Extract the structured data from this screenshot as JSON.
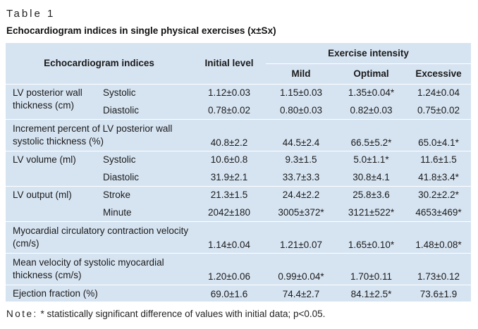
{
  "table_label": "Table 1",
  "title": "Echocardiogram indices in single physical exercises (x±Sx)",
  "header": {
    "indices": "Echocardiogram indices",
    "initial": "Initial level",
    "intensity": "Exercise intensity",
    "mild": "Mild",
    "optimal": "Optimal",
    "excessive": "Excessive"
  },
  "groups": [
    {
      "label": "LV posterior wall thickness (cm)",
      "rows": [
        {
          "sub": "Systolic",
          "initial": "1.12±0.03",
          "mild": "1.15±0.03",
          "optimal": "1.35±0.04*",
          "excessive": "1.24±0.04"
        },
        {
          "sub": "Diastolic",
          "initial": "0.78±0.02",
          "mild": "0.80±0.03",
          "optimal": "0.82±0.03",
          "excessive": "0.75±0.02"
        }
      ]
    },
    {
      "label": "Increment percent of LV posterior wall systolic thickness (%)",
      "rows": [
        {
          "sub": "",
          "initial": "40.8±2.2",
          "mild": "44.5±2.4",
          "optimal": "66.5±5.2*",
          "excessive": "65.0±4.1*"
        }
      ]
    },
    {
      "label": "LV volume (ml)",
      "rows": [
        {
          "sub": "Systolic",
          "initial": "10.6±0.8",
          "mild": "9.3±1.5",
          "optimal": "5.0±1.1*",
          "excessive": "11.6±1.5"
        },
        {
          "sub": "Diastolic",
          "initial": "31.9±2.1",
          "mild": "33.7±3.3",
          "optimal": "30.8±4.1",
          "excessive": "41.8±3.4*"
        }
      ]
    },
    {
      "label": "LV output (ml)",
      "rows": [
        {
          "sub": "Stroke",
          "initial": "21.3±1.5",
          "mild": "24.4±2.2",
          "optimal": "25.8±3.6",
          "excessive": "30.2±2.2*"
        },
        {
          "sub": "Minute",
          "initial": "2042±180",
          "mild": "3005±372*",
          "optimal": "3121±522*",
          "excessive": "4653±469*"
        }
      ]
    },
    {
      "label": "Myocardial circulatory contraction velocity (cm/s)",
      "rows": [
        {
          "sub": "",
          "initial": "1.14±0.04",
          "mild": "1.21±0.07",
          "optimal": "1.65±0.10*",
          "excessive": "1.48±0.08*"
        }
      ]
    },
    {
      "label": "Mean velocity of systolic myocardial thickness (cm/s)",
      "rows": [
        {
          "sub": "",
          "initial": "1.20±0.06",
          "mild": "0.99±0.04*",
          "optimal": "1.70±0.11",
          "excessive": "1.73±0.12"
        }
      ]
    },
    {
      "label": "Ejection fraction (%)",
      "rows": [
        {
          "sub": "",
          "initial": "69.0±1.6",
          "mild": "74.4±2.7",
          "optimal": "84.1±2.5*",
          "excessive": "73.6±1.9"
        }
      ]
    }
  ],
  "note": {
    "word": "Note:",
    "text": " * statistically significant difference of values with initial data; p<0.05."
  },
  "colors": {
    "table_bg": "#d6e4f2",
    "separator": "#ffffff"
  }
}
